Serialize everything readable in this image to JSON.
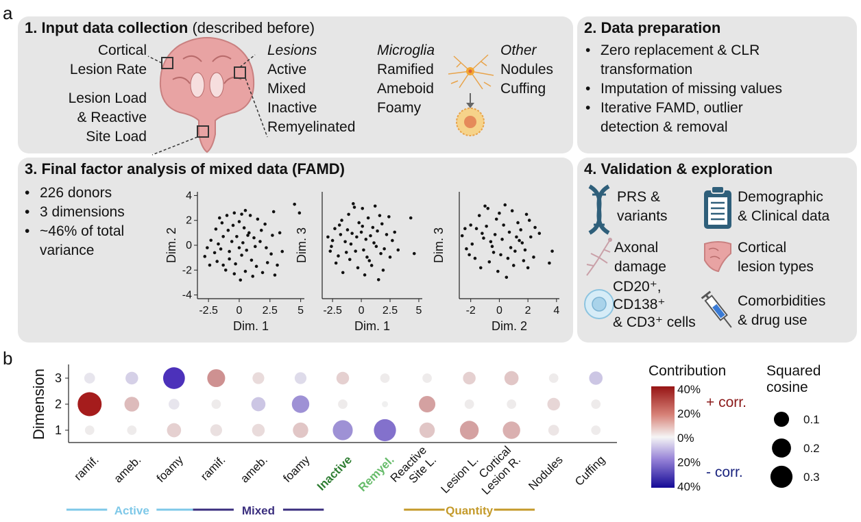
{
  "panel_labels": {
    "a": "a",
    "b": "b"
  },
  "box1": {
    "title": "1. Input data collection",
    "title_note": "(described before)",
    "brain_labels": [
      "Cortical",
      "Lesion Rate",
      "Lesion Load",
      "& Reactive",
      "Site Load"
    ],
    "lesions_head": "Lesions",
    "lesions": [
      "Active",
      "Mixed",
      "Inactive",
      "Remyelinated"
    ],
    "microglia_head": "Microglia",
    "microglia": [
      "Ramified",
      "Ameboid",
      "Foamy"
    ],
    "other_head": "Other",
    "other": [
      "Nodules",
      "Cuffing"
    ]
  },
  "box2": {
    "title": "2. Data preparation",
    "bullets": [
      "Zero replacement & CLR",
      "transformation",
      "Imputation of missing values",
      "Iterative FAMD, outlier",
      "detection & removal"
    ]
  },
  "box3": {
    "title": "3. Final factor analysis of mixed data (FAMD)",
    "bullets": [
      "226 donors",
      "3 dimensions",
      "~46% of total",
      "variance"
    ]
  },
  "box4": {
    "title": "4. Validation & exploration",
    "items": [
      {
        "icon": "dna-icon",
        "lines": [
          "PRS &",
          "variants"
        ]
      },
      {
        "icon": "clipboard-icon",
        "lines": [
          "Demographic",
          "& Clinical data"
        ]
      },
      {
        "icon": "axon-icon",
        "lines": [
          "Axonal",
          "damage"
        ]
      },
      {
        "icon": "brain-tissue-icon",
        "lines": [
          "Cortical",
          "lesion types"
        ]
      },
      {
        "icon": "cell-icon",
        "lines": [
          "CD20⁺,",
          "CD138⁺",
          "& CD3⁺ cells"
        ]
      },
      {
        "icon": "syringe-icon",
        "lines": [
          "Comorbidities",
          "& drug use"
        ]
      }
    ]
  },
  "chart_data": [
    {
      "type": "scatter",
      "xlabel": "Dim. 1",
      "ylabel": "Dim. 2",
      "xlim": [
        -3.4,
        5.3
      ],
      "ylim": [
        -4.3,
        4.3
      ],
      "xticks": [
        -2.5,
        0,
        2.5,
        5
      ],
      "xtick_labels": [
        "-2.5",
        "0",
        "2.5",
        "5"
      ],
      "yticks": [
        -4,
        -2,
        0,
        2,
        4
      ],
      "ytick_labels": [
        "-4",
        "-2",
        "0",
        "2",
        "4"
      ],
      "points": [
        [
          4.5,
          3.3
        ],
        [
          4.9,
          2.6
        ],
        [
          2.8,
          2.7
        ],
        [
          3.3,
          1.0
        ],
        [
          3.5,
          -0.5
        ],
        [
          3.1,
          -1.6
        ],
        [
          2.9,
          -2.4
        ],
        [
          -2.8,
          -0.9
        ],
        [
          -2.6,
          -0.2
        ],
        [
          -2.3,
          0.4
        ],
        [
          -1.9,
          1.3
        ],
        [
          -1.4,
          1.8
        ],
        [
          -1.0,
          2.4
        ],
        [
          -0.4,
          2.6
        ],
        [
          0.2,
          2.5
        ],
        [
          0.9,
          2.4
        ],
        [
          1.5,
          2.1
        ],
        [
          2.1,
          1.7
        ],
        [
          -2.0,
          -0.6
        ],
        [
          -1.7,
          0.1
        ],
        [
          -1.3,
          0.7
        ],
        [
          -0.9,
          1.2
        ],
        [
          -0.5,
          1.6
        ],
        [
          0.0,
          1.9
        ],
        [
          0.4,
          1.4
        ],
        [
          0.8,
          1.0
        ],
        [
          1.2,
          0.6
        ],
        [
          1.7,
          0.3
        ],
        [
          2.2,
          -0.2
        ],
        [
          2.6,
          -0.7
        ],
        [
          -1.8,
          -1.3
        ],
        [
          -1.3,
          -1.6
        ],
        [
          -0.8,
          -1.1
        ],
        [
          -0.3,
          -1.5
        ],
        [
          0.2,
          -0.8
        ],
        [
          0.6,
          -0.4
        ],
        [
          1.0,
          -1.2
        ],
        [
          1.4,
          -1.7
        ],
        [
          1.9,
          -2.2
        ],
        [
          2.3,
          -1.4
        ],
        [
          -1.1,
          -2.0
        ],
        [
          -0.4,
          -2.3
        ],
        [
          0.1,
          -2.8
        ],
        [
          0.5,
          -2.1
        ],
        [
          1.1,
          -2.5
        ],
        [
          -0.6,
          0.3
        ],
        [
          -0.2,
          0.7
        ],
        [
          0.3,
          0.2
        ],
        [
          -1.5,
          -0.3
        ],
        [
          0.7,
          0.8
        ],
        [
          1.3,
          -0.1
        ],
        [
          -0.8,
          -0.5
        ],
        [
          0.0,
          -0.2
        ],
        [
          1.8,
          1.2
        ],
        [
          -2.4,
          -1.6
        ],
        [
          2.7,
          0.8
        ],
        [
          -1.6,
          2.2
        ],
        [
          0.5,
          2.8
        ]
      ]
    },
    {
      "type": "scatter",
      "xlabel": "Dim. 1",
      "ylabel": "Dim. 3",
      "xlim": [
        -3.4,
        5.3
      ],
      "ylim": [
        -5.0,
        4.0
      ],
      "xticks": [
        -2.5,
        0,
        2.5,
        5
      ],
      "xtick_labels": [
        "-2.5",
        "0",
        "2.5",
        "5"
      ],
      "yticks": [],
      "ytick_labels": [],
      "points": [
        [
          4.3,
          1.8
        ],
        [
          4.6,
          -1.2
        ],
        [
          2.9,
          0.6
        ],
        [
          3.2,
          -0.9
        ],
        [
          -2.9,
          0.2
        ],
        [
          -2.6,
          -0.6
        ],
        [
          -2.3,
          0.9
        ],
        [
          -2.0,
          -1.4
        ],
        [
          -1.7,
          1.6
        ],
        [
          -1.4,
          -0.2
        ],
        [
          -1.1,
          2.1
        ],
        [
          -0.8,
          0.5
        ],
        [
          -0.5,
          -1.0
        ],
        [
          -0.2,
          1.4
        ],
        [
          0.1,
          2.6
        ],
        [
          0.4,
          0.0
        ],
        [
          0.7,
          -1.8
        ],
        [
          1.0,
          1.0
        ],
        [
          1.3,
          -0.6
        ],
        [
          1.6,
          2.0
        ],
        [
          1.9,
          -2.6
        ],
        [
          2.2,
          0.4
        ],
        [
          2.5,
          -1.5
        ],
        [
          -2.2,
          -2.0
        ],
        [
          -1.6,
          -2.8
        ],
        [
          -1.0,
          -1.7
        ],
        [
          -0.3,
          -2.4
        ],
        [
          0.3,
          -3.0
        ],
        [
          0.9,
          -2.2
        ],
        [
          1.5,
          -3.4
        ],
        [
          -1.9,
          1.2
        ],
        [
          -1.2,
          0.8
        ],
        [
          -0.6,
          2.7
        ],
        [
          0.0,
          0.6
        ],
        [
          0.6,
          1.8
        ],
        [
          1.2,
          2.8
        ],
        [
          1.8,
          1.3
        ],
        [
          2.4,
          1.9
        ],
        [
          -2.5,
          -0.1
        ],
        [
          -0.9,
          -0.4
        ],
        [
          0.2,
          -0.9
        ],
        [
          1.1,
          -0.3
        ],
        [
          2.0,
          -0.8
        ],
        [
          -1.3,
          -1.1
        ],
        [
          0.5,
          -1.5
        ],
        [
          -0.4,
          0.2
        ],
        [
          0.8,
          0.3
        ],
        [
          1.4,
          0.7
        ],
        [
          -1.8,
          0.4
        ],
        [
          0.1,
          1.1
        ],
        [
          2.7,
          -0.1
        ],
        [
          -2.7,
          -1.0
        ],
        [
          1.7,
          -1.2
        ],
        [
          -0.7,
          3.0
        ]
      ]
    },
    {
      "type": "scatter",
      "xlabel": "Dim. 2",
      "ylabel": "Dim. 3",
      "xlim": [
        -2.8,
        4.2
      ],
      "ylim": [
        -5.0,
        4.0
      ],
      "xticks": [
        -2,
        0,
        2,
        4
      ],
      "xtick_labels": [
        "-2",
        "0",
        "2",
        "4"
      ],
      "yticks": [],
      "ytick_labels": [],
      "points": [
        [
          3.7,
          -1.0
        ],
        [
          3.5,
          -2.0
        ],
        [
          2.4,
          -1.5
        ],
        [
          2.0,
          -2.4
        ],
        [
          -2.6,
          0.3
        ],
        [
          -2.3,
          -0.8
        ],
        [
          -2.0,
          1.2
        ],
        [
          -1.7,
          -1.6
        ],
        [
          -1.4,
          2.0
        ],
        [
          -1.1,
          0.1
        ],
        [
          -0.8,
          2.6
        ],
        [
          -0.5,
          -0.6
        ],
        [
          -0.2,
          1.7
        ],
        [
          0.1,
          -1.3
        ],
        [
          0.4,
          2.9
        ],
        [
          0.7,
          0.6
        ],
        [
          1.0,
          -2.2
        ],
        [
          1.3,
          1.4
        ],
        [
          1.6,
          -0.3
        ],
        [
          1.9,
          2.1
        ],
        [
          2.2,
          0.2
        ],
        [
          2.5,
          1.0
        ],
        [
          -1.9,
          -0.4
        ],
        [
          -1.3,
          -2.4
        ],
        [
          -0.7,
          -1.9
        ],
        [
          -0.1,
          -2.7
        ],
        [
          0.5,
          -3.2
        ],
        [
          1.1,
          -1.0
        ],
        [
          1.7,
          -1.8
        ],
        [
          -1.6,
          0.9
        ],
        [
          -0.9,
          1.1
        ],
        [
          -0.3,
          0.4
        ],
        [
          0.3,
          1.2
        ],
        [
          0.9,
          2.4
        ],
        [
          1.5,
          0.8
        ],
        [
          2.1,
          1.6
        ],
        [
          -2.1,
          -1.3
        ],
        [
          -0.6,
          -0.2
        ],
        [
          0.2,
          0.0
        ],
        [
          0.8,
          -0.7
        ],
        [
          1.4,
          -0.1
        ],
        [
          -1.2,
          0.5
        ],
        [
          0.0,
          2.2
        ],
        [
          0.6,
          -1.6
        ],
        [
          1.2,
          0.2
        ],
        [
          -0.4,
          -1.1
        ],
        [
          2.8,
          0.5
        ],
        [
          -2.4,
          0.9
        ],
        [
          1.8,
          -0.9
        ],
        [
          -1.0,
          2.8
        ]
      ]
    },
    {
      "type": "bubble",
      "ylabel": "Dimension",
      "yticks": [
        "1",
        "2",
        "3"
      ],
      "categories": [
        "ramif.",
        "ameb.",
        "foamy",
        "ramif.",
        "ameb.",
        "foamy",
        "Inactive",
        "Remyel.",
        "Reactive Site L.",
        "Lesion L.",
        "Cortical Lesion R.",
        "Nodules",
        "Cuffing"
      ],
      "category_colors": [
        "#111111",
        "#111111",
        "#111111",
        "#111111",
        "#111111",
        "#111111",
        "#2e7d32",
        "#66bb6a",
        "#111111",
        "#111111",
        "#111111",
        "#111111",
        "#111111"
      ],
      "category_bold": [
        false,
        false,
        false,
        false,
        false,
        false,
        true,
        true,
        false,
        false,
        false,
        false,
        false
      ],
      "series": [
        {
          "name": "1",
          "contribution": [
            1,
            1,
            6,
            3,
            4,
            8,
            -18,
            -24,
            8,
            15,
            12,
            2,
            1
          ],
          "squared_cosine": [
            0.01,
            0.01,
            0.06,
            0.03,
            0.04,
            0.08,
            0.18,
            0.24,
            0.08,
            0.15,
            0.12,
            0.02,
            0.01
          ]
        },
        {
          "name": "2",
          "contribution": [
            42,
            10,
            -2,
            1,
            -8,
            -18,
            1,
            0,
            15,
            1,
            1,
            5,
            1
          ],
          "squared_cosine": [
            0.3,
            0.07,
            0.02,
            0.01,
            0.06,
            0.12,
            0.01,
            0.0,
            0.1,
            0.01,
            0.01,
            0.04,
            0.01
          ]
        },
        {
          "name": "3",
          "contribution": [
            -2,
            -6,
            -36,
            18,
            4,
            -4,
            6,
            1,
            1,
            6,
            8,
            1,
            -8
          ],
          "squared_cosine": [
            0.02,
            0.04,
            0.23,
            0.13,
            0.03,
            0.03,
            0.04,
            0.01,
            0.01,
            0.04,
            0.06,
            0.01,
            0.05
          ]
        }
      ],
      "groups": [
        {
          "name": "Active",
          "from": 0,
          "to": 2,
          "color": "#7ec8e8"
        },
        {
          "name": "Mixed",
          "from": 3,
          "to": 5,
          "color": "#3a2e7e"
        },
        {
          "name": "Quantity",
          "from": 8,
          "to": 10,
          "color": "#c49a2a"
        }
      ],
      "color_legend": {
        "title": "Contribution",
        "ticks": [
          "40%",
          "20%",
          "0%",
          "20%",
          "40%"
        ],
        "pos_label": "+ corr.",
        "neg_label": "- corr.",
        "pos_color": "#8b1a1a",
        "neg_color": "#1a237e",
        "range": [
          -40,
          40
        ]
      },
      "size_legend": {
        "title_lines": [
          "Squared",
          "cosine"
        ],
        "values": [
          0.1,
          0.2,
          0.3
        ],
        "labels": [
          "0.1",
          "0.2",
          "0.3"
        ]
      }
    }
  ]
}
